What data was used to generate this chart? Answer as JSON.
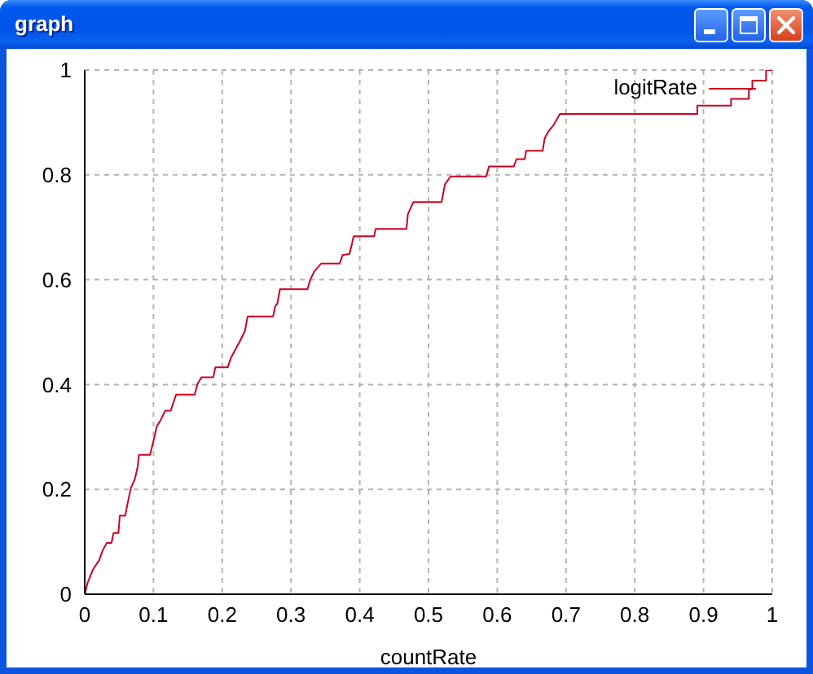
{
  "chart_data": {
    "type": "line",
    "title": "graph",
    "xlabel": "countRate",
    "x": [
      0,
      0.004,
      0.012,
      0.021,
      0.026,
      0.032,
      0.039,
      0.042,
      0.049,
      0.051,
      0.059,
      0.062,
      0.067,
      0.073,
      0.077,
      0.079,
      0.095,
      0.099,
      0.105,
      0.11,
      0.117,
      0.125,
      0.133,
      0.16,
      0.164,
      0.17,
      0.187,
      0.19,
      0.208,
      0.213,
      0.225,
      0.233,
      0.237,
      0.274,
      0.277,
      0.28,
      0.284,
      0.324,
      0.328,
      0.334,
      0.344,
      0.371,
      0.375,
      0.385,
      0.389,
      0.391,
      0.421,
      0.423,
      0.468,
      0.47,
      0.478,
      0.519,
      0.524,
      0.532,
      0.584,
      0.588,
      0.624,
      0.628,
      0.64,
      0.642,
      0.666,
      0.669,
      0.674,
      0.682,
      0.691,
      0.891,
      0.891,
      0.94,
      0.94,
      0.966,
      0.966,
      0.971,
      0.971,
      0.991,
      0.991,
      1
    ],
    "series": [
      {
        "name": "logitRate",
        "color": "#cc0020",
        "values": [
          0,
          0.021,
          0.047,
          0.065,
          0.083,
          0.098,
          0.098,
          0.117,
          0.117,
          0.15,
          0.15,
          0.171,
          0.202,
          0.22,
          0.243,
          0.266,
          0.266,
          0.287,
          0.321,
          0.331,
          0.35,
          0.35,
          0.381,
          0.381,
          0.401,
          0.414,
          0.414,
          0.433,
          0.433,
          0.452,
          0.481,
          0.502,
          0.53,
          0.53,
          0.549,
          0.554,
          0.582,
          0.582,
          0.6,
          0.616,
          0.631,
          0.631,
          0.647,
          0.649,
          0.67,
          0.683,
          0.683,
          0.697,
          0.697,
          0.725,
          0.748,
          0.748,
          0.782,
          0.797,
          0.797,
          0.816,
          0.816,
          0.83,
          0.83,
          0.846,
          0.846,
          0.87,
          0.882,
          0.895,
          0.916,
          0.916,
          0.932,
          0.932,
          0.945,
          0.945,
          0.963,
          0.963,
          0.98,
          0.98,
          1,
          1
        ]
      }
    ],
    "xlim": [
      0,
      1
    ],
    "ylim": [
      0,
      1
    ],
    "xticks": [
      0,
      0.1,
      0.2,
      0.3,
      0.4,
      0.5,
      0.6,
      0.7,
      0.8,
      0.9,
      1
    ],
    "yticks": [
      0,
      0.2,
      0.4,
      0.6,
      0.8,
      1
    ],
    "grid": true,
    "legend": "top right"
  }
}
